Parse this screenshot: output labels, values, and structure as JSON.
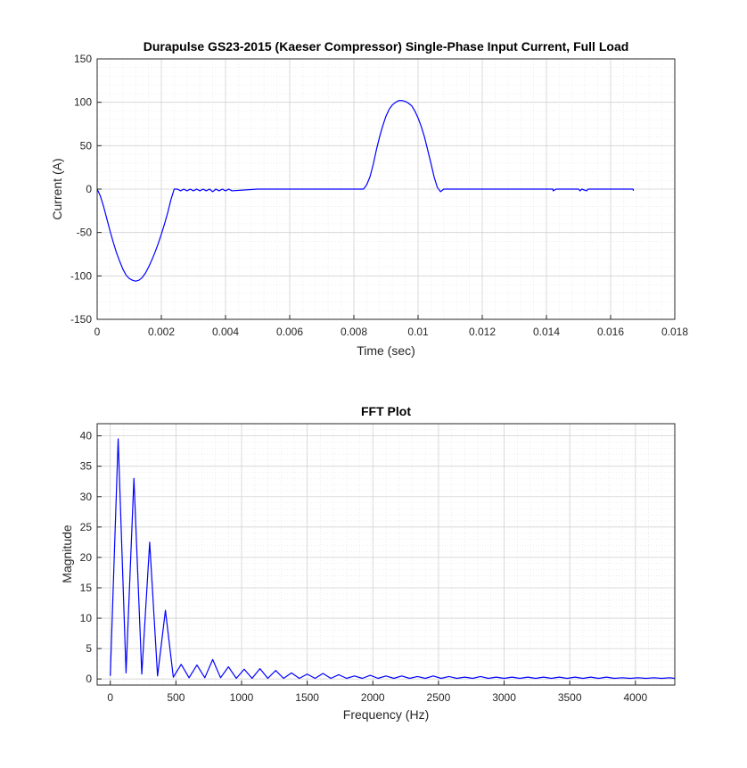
{
  "chart_data": [
    {
      "type": "line",
      "title": "Durapulse GS23-2015 (Kaeser Compressor) Single-Phase Input Current, Full Load",
      "xlabel": "Time (sec)",
      "ylabel": "Current (A)",
      "xlim": [
        0,
        0.018
      ],
      "ylim": [
        -150,
        150
      ],
      "xticks": [
        "0",
        "0.002",
        "0.004",
        "0.006",
        "0.008",
        "0.01",
        "0.012",
        "0.014",
        "0.016",
        "0.018"
      ],
      "yticks": [
        "150",
        "100",
        "50",
        "0",
        "-50",
        "-100",
        "-150"
      ],
      "grid": "on with minor grid",
      "series": [
        {
          "color": "#0000ff",
          "x": [
            0,
            0.0001,
            0.0002,
            0.0003,
            0.0004,
            0.0005,
            0.0006,
            0.0007,
            0.0008,
            0.0009,
            0.001,
            0.0011,
            0.0012,
            0.0013,
            0.0014,
            0.0015,
            0.0016,
            0.0017,
            0.0018,
            0.0019,
            0.002,
            0.0021,
            0.0022,
            0.0023,
            0.0024,
            0.0025,
            0.0026,
            0.0027,
            0.0028,
            0.0029,
            0.003,
            0.0031,
            0.0032,
            0.0033,
            0.0034,
            0.0035,
            0.0036,
            0.0037,
            0.0038,
            0.0039,
            0.004,
            0.0041,
            0.0042,
            0.005,
            0.006,
            0.007,
            0.008,
            0.0083,
            0.0084,
            0.0085,
            0.0086,
            0.0087,
            0.0088,
            0.0089,
            0.009,
            0.0091,
            0.0092,
            0.0093,
            0.0094,
            0.0095,
            0.0096,
            0.0097,
            0.0098,
            0.0099,
            0.01,
            0.0101,
            0.0102,
            0.0103,
            0.0104,
            0.0105,
            0.0106,
            0.0107,
            0.0108,
            0.0109,
            0.011,
            0.012,
            0.013,
            0.014,
            0.0142,
            0.01421,
            0.0143,
            0.015,
            0.01505,
            0.0151,
            0.01525,
            0.0153,
            0.016,
            0.0167,
            0.01671
          ],
          "y": [
            0,
            -8,
            -20,
            -34,
            -48,
            -61,
            -73,
            -83,
            -92,
            -99,
            -103,
            -105,
            -106,
            -105,
            -102,
            -97,
            -90,
            -82,
            -73,
            -63,
            -52,
            -40,
            -27,
            -12,
            0,
            0,
            -2,
            0,
            -2,
            0,
            -2,
            0,
            -2,
            0,
            -2,
            0,
            -3,
            0,
            -2,
            0,
            -2,
            0,
            -2,
            0,
            0,
            0,
            0,
            0,
            5,
            14,
            28,
            45,
            60,
            73,
            84,
            92,
            97,
            100,
            102,
            102,
            101,
            99,
            96,
            90,
            82,
            72,
            60,
            45,
            30,
            14,
            2,
            -3,
            0,
            0,
            0,
            0,
            0,
            0,
            0,
            -2,
            0,
            0,
            -2,
            0,
            -2,
            0,
            0,
            0,
            -2
          ]
        }
      ]
    },
    {
      "type": "line",
      "title": "FFT Plot",
      "xlabel": "Frequency (Hz)",
      "ylabel": "Magnitude",
      "xlim": [
        -100,
        4300
      ],
      "ylim": [
        -1,
        42
      ],
      "xticks": [
        "0",
        "500",
        "1000",
        "1500",
        "2000",
        "2500",
        "3000",
        "3500",
        "4000"
      ],
      "yticks": [
        "40",
        "35",
        "30",
        "25",
        "20",
        "15",
        "10",
        "5",
        "0"
      ],
      "grid": "on with minor grid",
      "series": [
        {
          "color": "#0000ff",
          "x": [
            0,
            60,
            120,
            180,
            240,
            300,
            360,
            420,
            480,
            540,
            600,
            660,
            720,
            780,
            840,
            900,
            960,
            1020,
            1080,
            1140,
            1200,
            1260,
            1320,
            1380,
            1440,
            1500,
            1560,
            1620,
            1680,
            1740,
            1800,
            1860,
            1920,
            1980,
            2040,
            2100,
            2160,
            2220,
            2280,
            2340,
            2400,
            2460,
            2520,
            2580,
            2640,
            2700,
            2760,
            2820,
            2880,
            2940,
            3000,
            3060,
            3120,
            3180,
            3240,
            3300,
            3360,
            3420,
            3480,
            3540,
            3600,
            3660,
            3720,
            3780,
            3840,
            3900,
            3960,
            4020,
            4080,
            4140,
            4200,
            4260,
            4300
          ],
          "y": [
            0.5,
            39.5,
            1,
            33,
            0.8,
            22.5,
            0.5,
            11.3,
            0.3,
            2.4,
            0.2,
            2.3,
            0.2,
            3.2,
            0.2,
            2,
            0.1,
            1.6,
            0.1,
            1.7,
            0.1,
            1.4,
            0.1,
            1,
            0.1,
            0.8,
            0.1,
            0.9,
            0.1,
            0.7,
            0.1,
            0.5,
            0.1,
            0.6,
            0.1,
            0.5,
            0.1,
            0.5,
            0.1,
            0.4,
            0.1,
            0.5,
            0.1,
            0.4,
            0.1,
            0.3,
            0.1,
            0.4,
            0.1,
            0.3,
            0.1,
            0.3,
            0.1,
            0.3,
            0.1,
            0.3,
            0.1,
            0.3,
            0.1,
            0.3,
            0.1,
            0.3,
            0.1,
            0.3,
            0.1,
            0.2,
            0.1,
            0.2,
            0.1,
            0.2,
            0.1,
            0.2,
            0.1
          ]
        }
      ]
    }
  ]
}
